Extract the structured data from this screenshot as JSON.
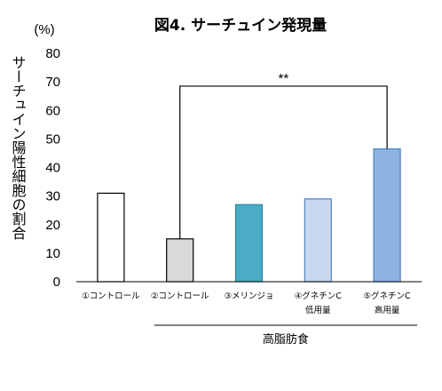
{
  "chart_data": {
    "type": "bar",
    "title": "図4. サーチュイン発現量",
    "ylabel": "サーチュイン陽性細胞の割合",
    "y_unit": "(%)",
    "ylim": [
      0,
      80
    ],
    "yticks": [
      0,
      10,
      20,
      30,
      40,
      50,
      60,
      70,
      80
    ],
    "grid": false,
    "legend": "none",
    "categories": [
      {
        "label": "①コントロール",
        "sub": ""
      },
      {
        "label": "②コントロール",
        "sub": ""
      },
      {
        "label": "③メリンジョ",
        "sub": ""
      },
      {
        "label": "④グネチンC",
        "sub": "低用量"
      },
      {
        "label": "⑤グネチンC",
        "sub": "高用量"
      }
    ],
    "values": [
      31,
      15,
      27,
      29,
      46.5
    ],
    "bar_fills": [
      "#ffffff",
      "#d9d9d9",
      "#4bacc6",
      "#c6d9f1",
      "#8db3e2"
    ],
    "bar_strokes": [
      "#000000",
      "#000000",
      "#31859c",
      "#4f81bd",
      "#4f81bd"
    ],
    "group_label": "高脂肪食",
    "group_span": [
      1,
      4
    ],
    "significance": {
      "from": 1,
      "to": 4,
      "label": "**"
    }
  }
}
